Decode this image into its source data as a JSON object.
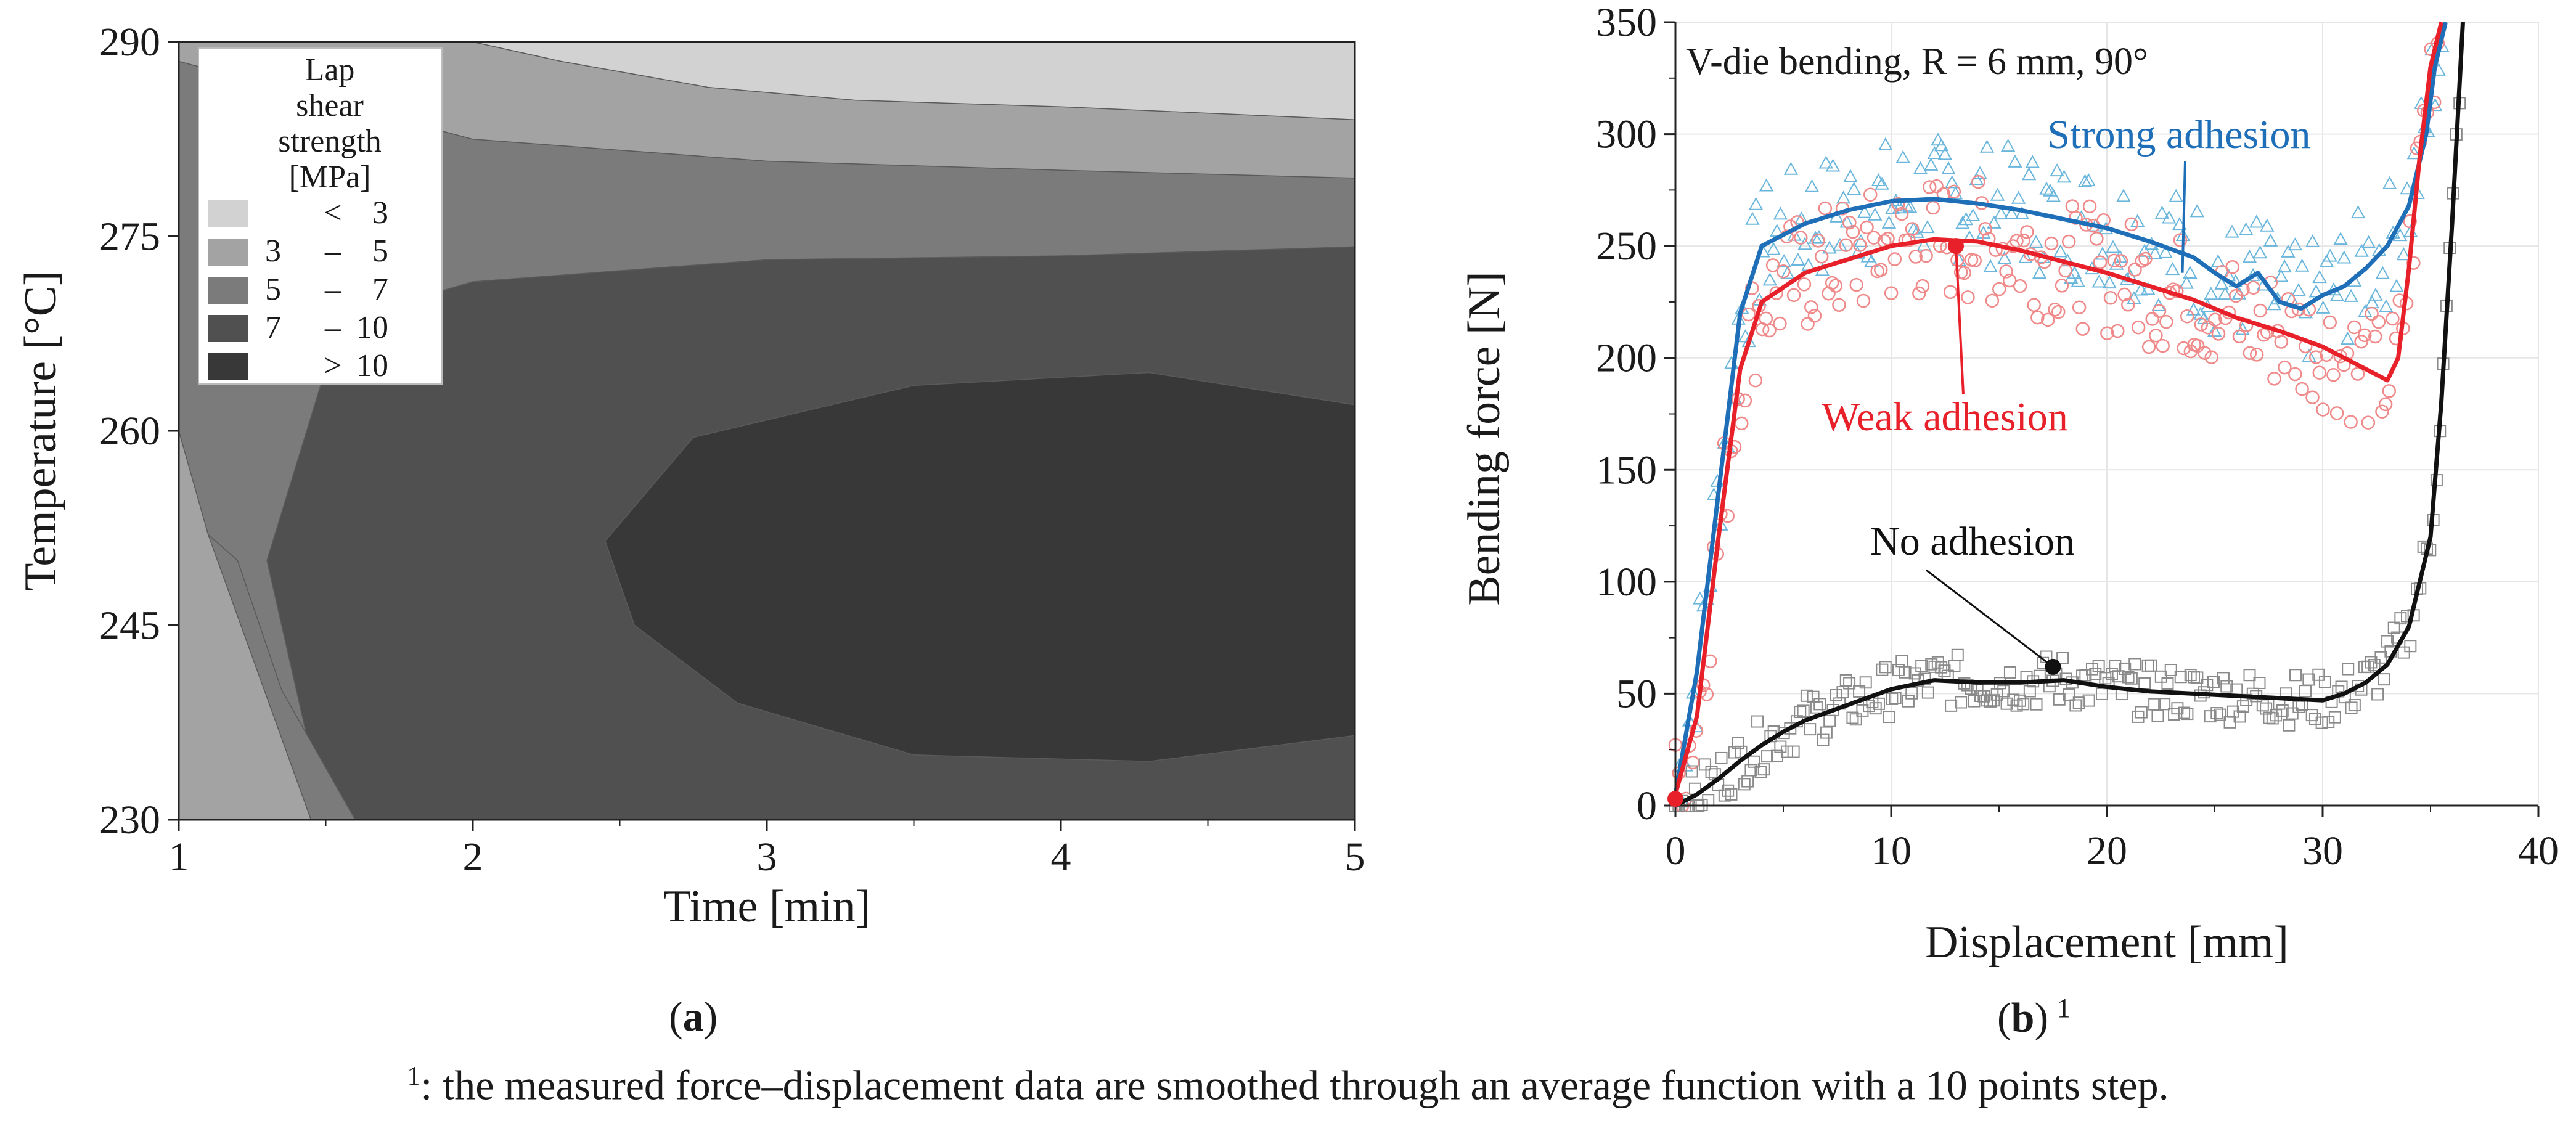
{
  "chart_data": [
    {
      "type": "contour",
      "panel": "a",
      "xlabel": "Time [min]",
      "ylabel": "Temperature [°C]",
      "xlim": [
        1,
        5
      ],
      "ylim": [
        230,
        290
      ],
      "xticks": [
        "1",
        "2",
        "3",
        "4",
        "5"
      ],
      "yticks": [
        "230",
        "245",
        "260",
        "275",
        "290"
      ],
      "legend": {
        "title": [
          "Lap",
          "shear",
          "strength",
          "[MPa]"
        ],
        "position": "top-left",
        "levels": [
          {
            "range": [
              "",
              "<",
              "3"
            ],
            "color": "#d2d2d2"
          },
          {
            "range": [
              "3",
              "–",
              "5"
            ],
            "color": "#a3a3a3"
          },
          {
            "range": [
              "5",
              "–",
              "7"
            ],
            "color": "#7b7b7b"
          },
          {
            "range": [
              "7",
              "– ",
              "10"
            ],
            "color": "#505050"
          },
          {
            "range": [
              "",
              ">",
              "10"
            ],
            "color": "#383838"
          }
        ]
      },
      "regions": {
        "lt3": [
          [
            2.0,
            290
          ],
          [
            2.3,
            288.5
          ],
          [
            2.8,
            286.5
          ],
          [
            3.3,
            285.5
          ],
          [
            4,
            285.0
          ],
          [
            5,
            284.0
          ],
          [
            5,
            290
          ]
        ],
        "lt5": [
          [
            1.0,
            288.5
          ],
          [
            1.5,
            285.5
          ],
          [
            2,
            282.5
          ],
          [
            3,
            280.8
          ],
          [
            4,
            280.1
          ],
          [
            5,
            279.5
          ],
          [
            5,
            290
          ],
          [
            1,
            290
          ]
        ],
        "lt7": [
          [
            1.0,
            260.0
          ],
          [
            1.25,
            263.5
          ],
          [
            1.5,
            268.0
          ],
          [
            2,
            271.5
          ],
          [
            3,
            273.2
          ],
          [
            4,
            273.5
          ],
          [
            5,
            274.2
          ],
          [
            5,
            290
          ],
          [
            1,
            290
          ]
        ],
        "lt10": [
          [
            1.45,
            230
          ],
          [
            1.1,
            235
          ],
          [
            1.0,
            237
          ],
          [
            1.0,
            290
          ],
          [
            5,
            290
          ],
          [
            5,
            230
          ]
        ],
        "gt10": [
          [
            2.45,
            251.5
          ],
          [
            2.75,
            259.5
          ],
          [
            3.5,
            263.5
          ],
          [
            4.3,
            264.5
          ],
          [
            5,
            262.0
          ],
          [
            5,
            236.5
          ],
          [
            4.3,
            234.5
          ],
          [
            3.5,
            235.0
          ],
          [
            2.9,
            239.0
          ],
          [
            2.55,
            245.0
          ]
        ]
      },
      "panel_label": "a"
    },
    {
      "type": "line",
      "panel": "b",
      "title": "V-die bending, R = 6 mm, 90°",
      "xlabel": "Displacement [mm]",
      "ylabel": "Bending force [N]",
      "xlim": [
        0,
        40
      ],
      "ylim": [
        0,
        350
      ],
      "xticks": [
        "0",
        "10",
        "20",
        "30",
        "40"
      ],
      "yticks": [
        "0",
        "50",
        "100",
        "150",
        "200",
        "250",
        "300",
        "350"
      ],
      "grid": true,
      "series": [
        {
          "name": "Strong adhesion",
          "color": "#1f6fb8",
          "scatter_color": "#6ab6dc",
          "marker": "triangle",
          "x": [
            0,
            1,
            2,
            3,
            4,
            6,
            8,
            10,
            12,
            14,
            16,
            18,
            20,
            22,
            24,
            25,
            26,
            27,
            28,
            29,
            30,
            31,
            32,
            33,
            34,
            34.8,
            35.2,
            35.7
          ],
          "y": [
            5,
            60,
            140,
            220,
            250,
            260,
            266,
            270,
            271,
            269,
            266,
            262,
            258,
            252,
            245,
            238,
            232,
            238,
            225,
            222,
            228,
            232,
            240,
            250,
            268,
            300,
            330,
            350
          ]
        },
        {
          "name": "Weak adhesion",
          "color": "#e8202a",
          "scatter_color": "#f08a8a",
          "marker": "circle",
          "x": [
            0,
            1,
            2,
            3,
            4,
            6,
            8,
            10,
            12,
            14,
            16,
            18,
            20,
            22,
            24,
            26,
            28,
            30,
            32,
            33,
            33.5,
            34,
            34.5,
            35,
            35.5
          ],
          "y": [
            5,
            40,
            120,
            195,
            225,
            238,
            244,
            250,
            253,
            252,
            248,
            243,
            238,
            232,
            226,
            218,
            212,
            205,
            195,
            190,
            200,
            240,
            290,
            330,
            350
          ]
        },
        {
          "name": "No adhesion",
          "color": "#111111",
          "scatter_color": "#8a8a8a",
          "marker": "square",
          "x": [
            0,
            1,
            2,
            3,
            4,
            5,
            6,
            8,
            10,
            12,
            14,
            16,
            18,
            20,
            22,
            24,
            26,
            28,
            30,
            31,
            32,
            33,
            34,
            35,
            35.5,
            36,
            36.5
          ],
          "y": [
            0,
            5,
            12,
            20,
            27,
            33,
            38,
            45,
            52,
            56,
            55,
            55,
            56,
            53,
            51,
            50,
            49,
            48,
            47,
            50,
            55,
            63,
            80,
            120,
            180,
            260,
            350
          ]
        }
      ],
      "annotations": [
        {
          "text": "Strong adhesion",
          "color": "#1f6fb8"
        },
        {
          "text": "Weak adhesion",
          "color": "#e8202a"
        },
        {
          "text": "No adhesion",
          "color": "#111111"
        }
      ],
      "panel_label": "b"
    }
  ],
  "panel_a_label": "a",
  "panel_b_label": "b",
  "panel_b_sup": "1",
  "footnote_sup": "1",
  "footnote_text": ": the measured force–displacement data are smoothed through an average function with a 10 points step."
}
